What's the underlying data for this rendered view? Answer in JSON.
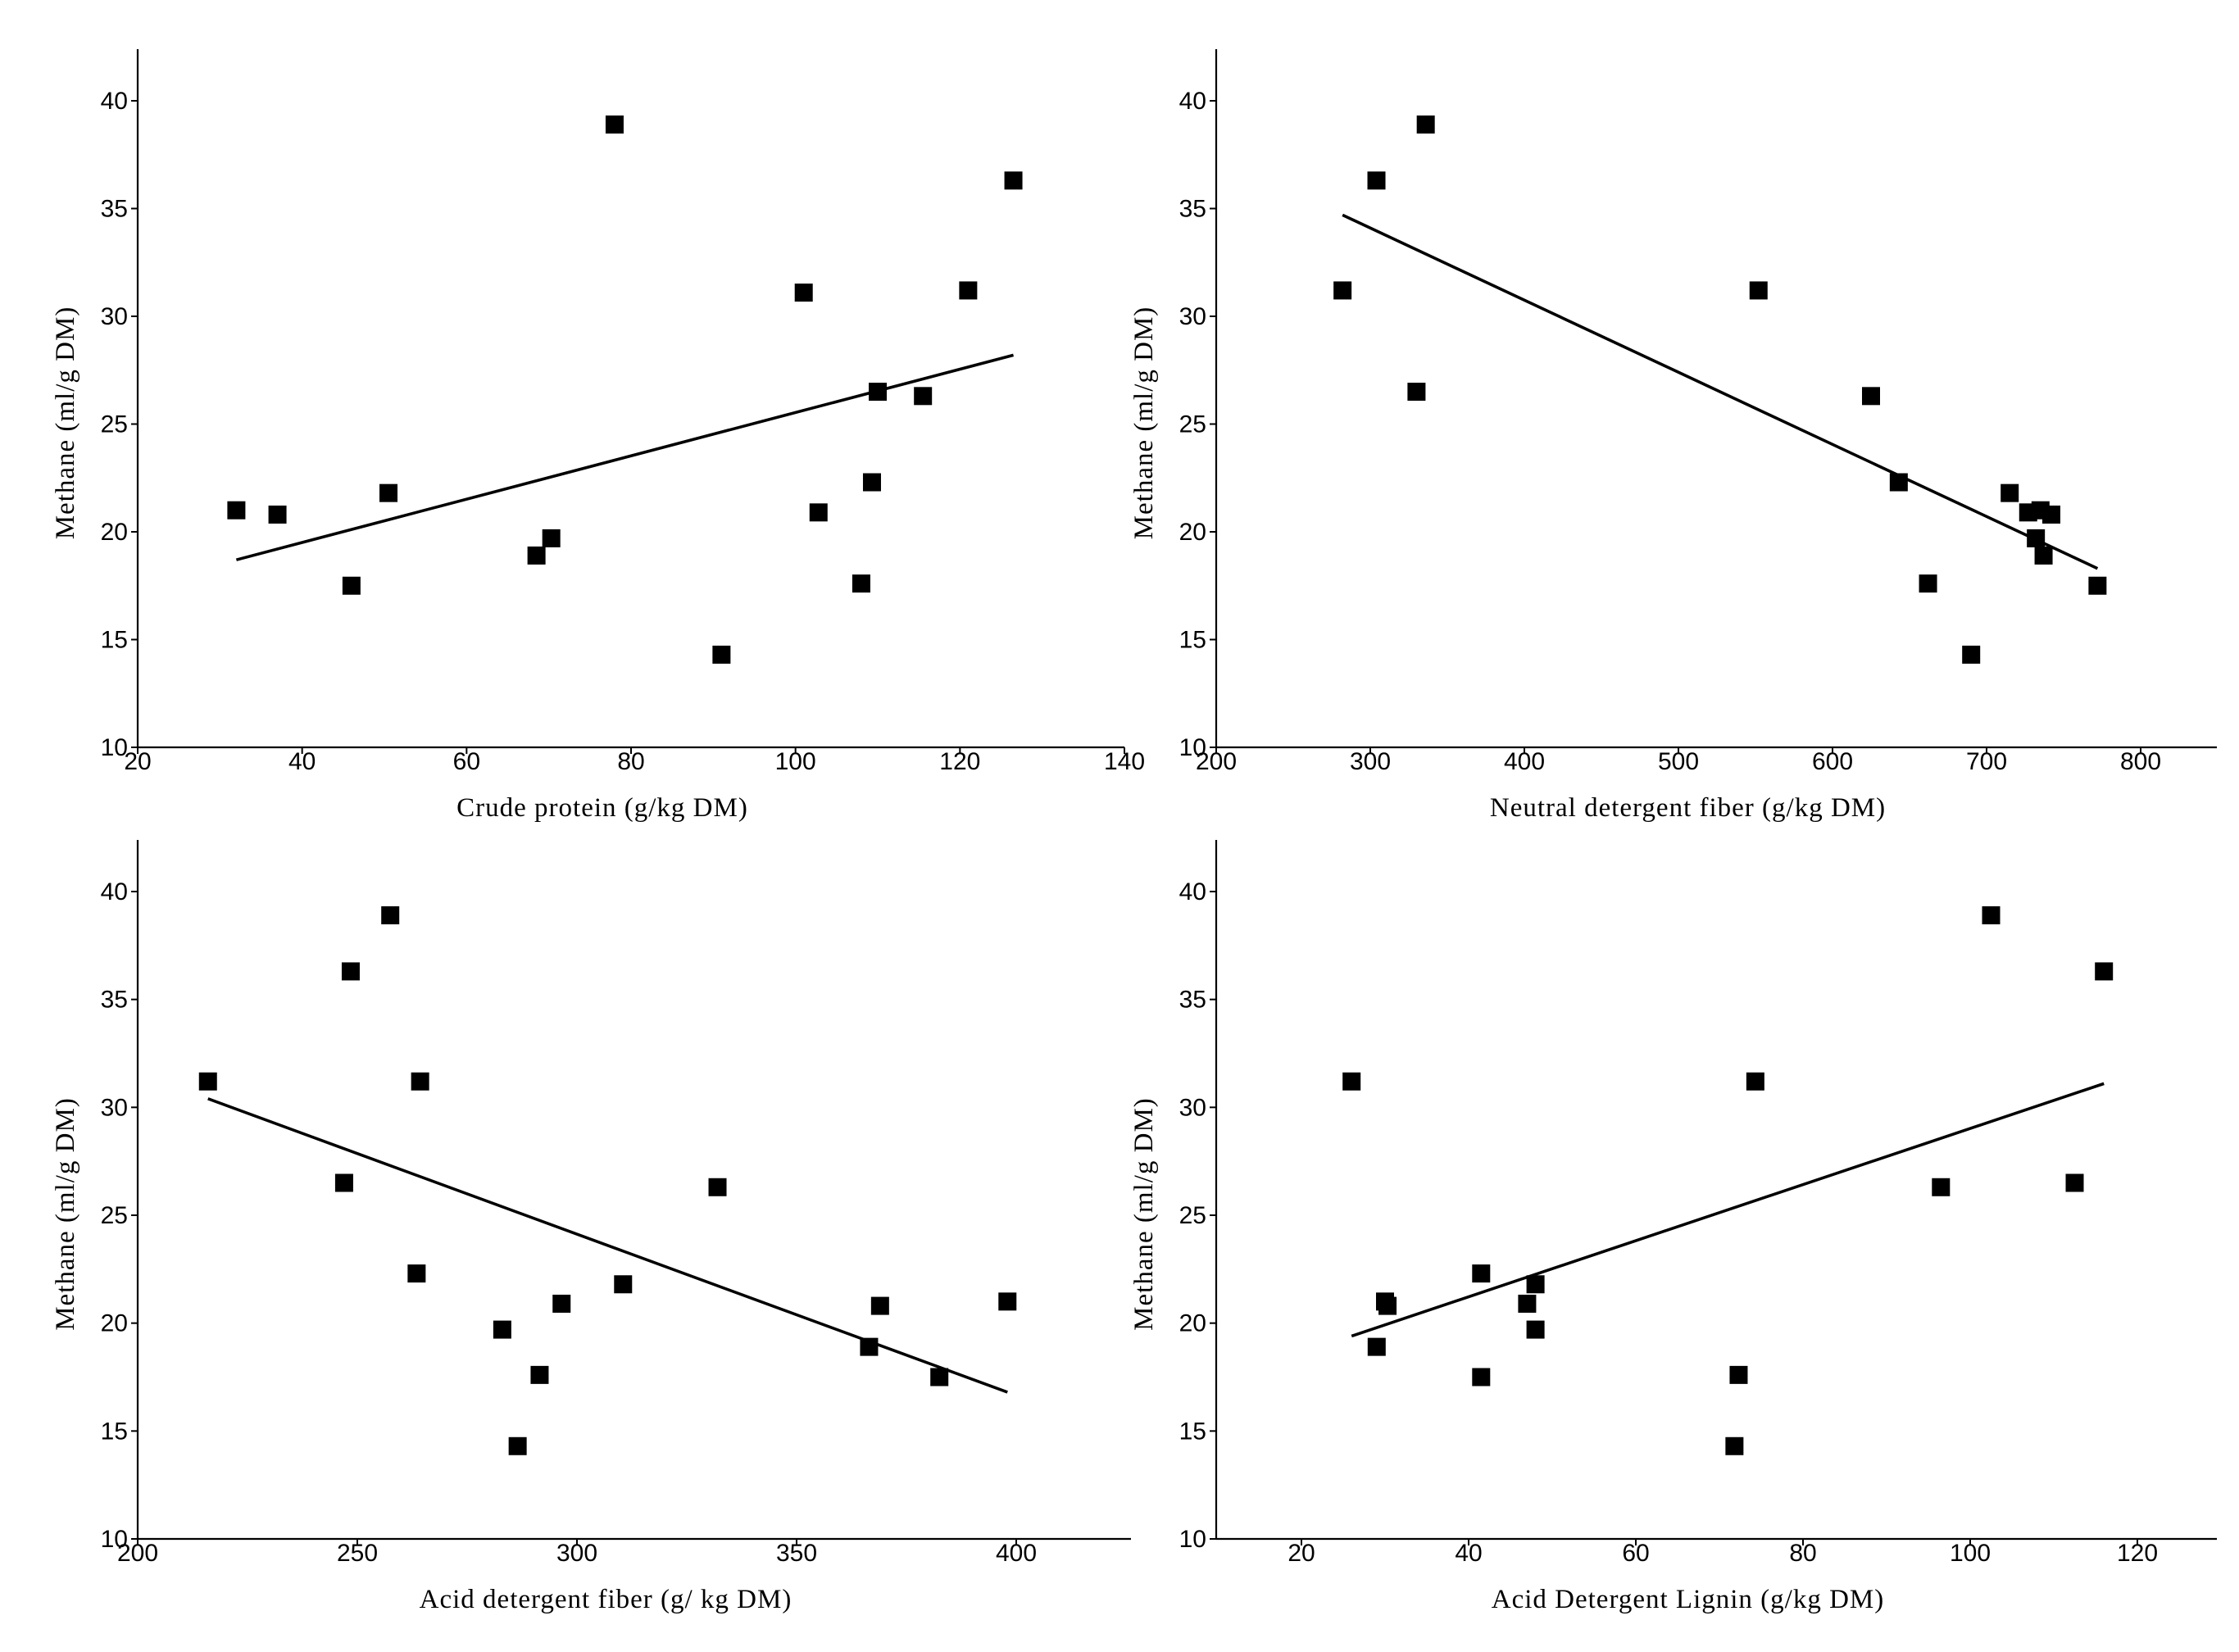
{
  "chart_data": [
    {
      "type": "scatter",
      "title": "",
      "xlabel": "Crude protein (g/kg DM)",
      "ylabel": "Methane (ml/g DM)",
      "xlim": [
        20,
        140
      ],
      "ylim": [
        10,
        42
      ],
      "xticks": [
        20,
        40,
        60,
        80,
        100,
        120,
        140
      ],
      "yticks": [
        10,
        15,
        20,
        25,
        30,
        35,
        40
      ],
      "grid": false,
      "points": [
        {
          "x": 32,
          "y": 21.0
        },
        {
          "x": 37,
          "y": 20.8
        },
        {
          "x": 46,
          "y": 17.5
        },
        {
          "x": 50.5,
          "y": 21.8
        },
        {
          "x": 68.5,
          "y": 18.9
        },
        {
          "x": 70.3,
          "y": 19.7
        },
        {
          "x": 78,
          "y": 38.9
        },
        {
          "x": 91,
          "y": 14.3
        },
        {
          "x": 101,
          "y": 31.1
        },
        {
          "x": 102.8,
          "y": 20.9
        },
        {
          "x": 108,
          "y": 17.6
        },
        {
          "x": 109.3,
          "y": 22.3
        },
        {
          "x": 110,
          "y": 26.5
        },
        {
          "x": 115.5,
          "y": 26.3
        },
        {
          "x": 121,
          "y": 31.2
        },
        {
          "x": 126.5,
          "y": 36.3
        }
      ],
      "trendline": {
        "x1": 32,
        "y1": 18.7,
        "x2": 126.5,
        "y2": 28.2
      }
    },
    {
      "type": "scatter",
      "title": "",
      "xlabel": "Neutral detergent fiber (g/kg DM)",
      "ylabel": "Methane (ml/g DM)",
      "xlim": [
        200,
        850
      ],
      "ylim": [
        10,
        42
      ],
      "xticks": [
        200,
        300,
        400,
        500,
        600,
        700,
        800
      ],
      "yticks": [
        10,
        15,
        20,
        25,
        30,
        35,
        40
      ],
      "grid": false,
      "points": [
        {
          "x": 282,
          "y": 31.2
        },
        {
          "x": 304,
          "y": 36.3
        },
        {
          "x": 330,
          "y": 26.5
        },
        {
          "x": 336,
          "y": 38.9
        },
        {
          "x": 552,
          "y": 31.2
        },
        {
          "x": 625,
          "y": 26.3
        },
        {
          "x": 643,
          "y": 22.3
        },
        {
          "x": 662,
          "y": 17.6
        },
        {
          "x": 690,
          "y": 14.3
        },
        {
          "x": 715,
          "y": 21.8
        },
        {
          "x": 727,
          "y": 20.9
        },
        {
          "x": 732,
          "y": 19.7
        },
        {
          "x": 735,
          "y": 21.0
        },
        {
          "x": 737,
          "y": 18.9
        },
        {
          "x": 742,
          "y": 20.8
        },
        {
          "x": 772,
          "y": 17.5
        }
      ],
      "trendline": {
        "x1": 282,
        "y1": 34.7,
        "x2": 772,
        "y2": 18.3
      }
    },
    {
      "type": "scatter",
      "title": "",
      "xlabel": "Acid detergent fiber (g/ kg DM)",
      "ylabel": "Methane (ml/g DM)",
      "xlim": [
        200,
        425
      ],
      "ylim": [
        10,
        42
      ],
      "xticks": [
        200,
        250,
        300,
        350,
        400
      ],
      "yticks": [
        10,
        15,
        20,
        25,
        30,
        35,
        40
      ],
      "grid": false,
      "points": [
        {
          "x": 216,
          "y": 31.2
        },
        {
          "x": 247,
          "y": 26.5
        },
        {
          "x": 248.5,
          "y": 36.3
        },
        {
          "x": 257.5,
          "y": 38.9
        },
        {
          "x": 263.5,
          "y": 22.3
        },
        {
          "x": 264.3,
          "y": 31.2
        },
        {
          "x": 283,
          "y": 19.7
        },
        {
          "x": 286.5,
          "y": 14.3
        },
        {
          "x": 291.5,
          "y": 17.6
        },
        {
          "x": 296.5,
          "y": 20.9
        },
        {
          "x": 310.5,
          "y": 21.8
        },
        {
          "x": 332,
          "y": 26.3
        },
        {
          "x": 366.5,
          "y": 18.9
        },
        {
          "x": 369,
          "y": 20.8
        },
        {
          "x": 382.5,
          "y": 17.5
        },
        {
          "x": 398,
          "y": 21.0
        }
      ],
      "trendline": {
        "x1": 216,
        "y1": 30.4,
        "x2": 398,
        "y2": 16.8
      }
    },
    {
      "type": "scatter",
      "title": "",
      "xlabel": "Acid Detergent Lignin (g/kg DM)",
      "ylabel": "Methane (ml/g DM)",
      "xlim": [
        12,
        130
      ],
      "ylim": [
        10,
        42
      ],
      "xticks": [
        20,
        40,
        60,
        80,
        100,
        120
      ],
      "yticks": [
        10,
        15,
        20,
        25,
        30,
        35,
        40
      ],
      "grid": false,
      "points": [
        {
          "x": 26,
          "y": 31.2
        },
        {
          "x": 29,
          "y": 18.9
        },
        {
          "x": 30,
          "y": 21.0
        },
        {
          "x": 30.3,
          "y": 20.8
        },
        {
          "x": 41.5,
          "y": 22.3
        },
        {
          "x": 41.5,
          "y": 17.5
        },
        {
          "x": 47,
          "y": 20.9
        },
        {
          "x": 48,
          "y": 21.8
        },
        {
          "x": 48,
          "y": 19.7
        },
        {
          "x": 71.8,
          "y": 14.3
        },
        {
          "x": 72.3,
          "y": 17.6
        },
        {
          "x": 74.3,
          "y": 31.2
        },
        {
          "x": 96.5,
          "y": 26.3
        },
        {
          "x": 102.5,
          "y": 38.9
        },
        {
          "x": 112.5,
          "y": 26.5
        },
        {
          "x": 116,
          "y": 36.3
        }
      ],
      "trendline": {
        "x1": 26,
        "y1": 19.4,
        "x2": 116,
        "y2": 31.1
      }
    }
  ]
}
